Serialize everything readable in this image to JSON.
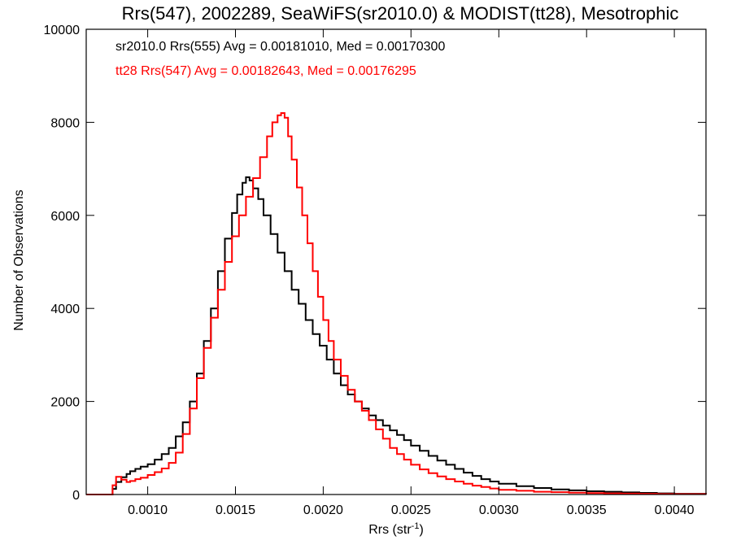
{
  "chart_data": {
    "type": "line",
    "title": "Rrs(547), 2002289, SeaWiFS(sr2010.0) & MODIST(tt28), Mesotrophic",
    "xlabel_main": "Rrs (str",
    "xlabel_sup": "-1",
    "xlabel_close": ")",
    "ylabel": "Number of Observations",
    "xlim": [
      0.00065,
      0.00418
    ],
    "ylim": [
      0,
      10000
    ],
    "xticks": [
      0.001,
      0.0015,
      0.002,
      0.0025,
      0.003,
      0.0035,
      0.004
    ],
    "xtick_labels": [
      "0.0010",
      "0.0015",
      "0.0020",
      "0.0025",
      "0.0030",
      "0.0035",
      "0.0040"
    ],
    "yticks": [
      0,
      2000,
      4000,
      6000,
      8000,
      10000
    ],
    "ytick_labels": [
      "0",
      "2000",
      "4000",
      "6000",
      "8000",
      "10000"
    ],
    "legend_placement": "top-left",
    "grid": false,
    "series": [
      {
        "name": "sr2010.0 Rrs(555) Avg = 0.00181010, Med = 0.00170300",
        "color": "#000000",
        "step": true,
        "x": [
          0.00065,
          0.00079,
          0.0008,
          0.00082,
          0.00085,
          0.00088,
          0.0009,
          0.00093,
          0.00096,
          0.001,
          0.00104,
          0.00108,
          0.00112,
          0.00116,
          0.0012,
          0.00124,
          0.00128,
          0.00132,
          0.00136,
          0.0014,
          0.00144,
          0.00148,
          0.00151,
          0.00154,
          0.00156,
          0.00158,
          0.0016,
          0.00163,
          0.00166,
          0.0017,
          0.00174,
          0.00178,
          0.00182,
          0.00186,
          0.0019,
          0.00194,
          0.00198,
          0.00202,
          0.00206,
          0.0021,
          0.00214,
          0.00218,
          0.00222,
          0.00226,
          0.0023,
          0.00234,
          0.00238,
          0.00242,
          0.00246,
          0.0025,
          0.00255,
          0.0026,
          0.00265,
          0.0027,
          0.00275,
          0.0028,
          0.00285,
          0.0029,
          0.00295,
          0.003,
          0.0031,
          0.0032,
          0.0033,
          0.0034,
          0.0035,
          0.0036,
          0.0037,
          0.0038,
          0.0039,
          0.004,
          0.00418
        ],
        "y": [
          0,
          0,
          120,
          270,
          370,
          440,
          500,
          550,
          600,
          650,
          750,
          870,
          1000,
          1250,
          1550,
          2000,
          2600,
          3300,
          4000,
          4800,
          5500,
          6050,
          6450,
          6700,
          6820,
          6750,
          6580,
          6350,
          6000,
          5600,
          5200,
          4800,
          4400,
          4100,
          3750,
          3450,
          3200,
          2900,
          2600,
          2350,
          2150,
          2000,
          1850,
          1700,
          1600,
          1480,
          1380,
          1280,
          1170,
          1050,
          940,
          830,
          730,
          640,
          550,
          470,
          400,
          330,
          280,
          230,
          180,
          140,
          110,
          90,
          70,
          60,
          45,
          35,
          25,
          15,
          10
        ]
      },
      {
        "name": "tt28 Rrs(547) Avg = 0.00182643, Med = 0.00176295",
        "color": "#ff0000",
        "step": true,
        "x": [
          0.00065,
          0.00079,
          0.0008,
          0.00082,
          0.00085,
          0.00088,
          0.0009,
          0.00093,
          0.00096,
          0.001,
          0.00104,
          0.00108,
          0.00112,
          0.00116,
          0.0012,
          0.00124,
          0.00128,
          0.00132,
          0.00136,
          0.0014,
          0.00144,
          0.00148,
          0.00152,
          0.00156,
          0.0016,
          0.00164,
          0.00168,
          0.00171,
          0.00174,
          0.00176,
          0.00178,
          0.0018,
          0.00182,
          0.00185,
          0.00188,
          0.00191,
          0.00194,
          0.00197,
          0.002,
          0.00203,
          0.00206,
          0.0021,
          0.00214,
          0.00218,
          0.00222,
          0.00226,
          0.0023,
          0.00234,
          0.00238,
          0.00242,
          0.00246,
          0.0025,
          0.00255,
          0.0026,
          0.00265,
          0.0027,
          0.00275,
          0.0028,
          0.00285,
          0.0029,
          0.00295,
          0.003,
          0.0031,
          0.0032,
          0.0033,
          0.0034,
          0.0035,
          0.0036,
          0.0037,
          0.0038,
          0.0039,
          0.004,
          0.00418
        ],
        "y": [
          0,
          0,
          200,
          380,
          320,
          270,
          290,
          330,
          360,
          420,
          480,
          560,
          680,
          900,
          1300,
          1850,
          2500,
          3150,
          3800,
          4400,
          5000,
          5550,
          6000,
          6400,
          6800,
          7250,
          7700,
          8000,
          8150,
          8200,
          8100,
          7700,
          7200,
          6600,
          6000,
          5400,
          4800,
          4250,
          3750,
          3300,
          2900,
          2550,
          2250,
          2000,
          1800,
          1600,
          1400,
          1200,
          1000,
          870,
          750,
          640,
          540,
          460,
          390,
          330,
          280,
          230,
          190,
          160,
          130,
          100,
          80,
          60,
          50,
          40,
          30,
          25,
          20,
          15,
          10,
          8,
          5
        ]
      }
    ]
  }
}
